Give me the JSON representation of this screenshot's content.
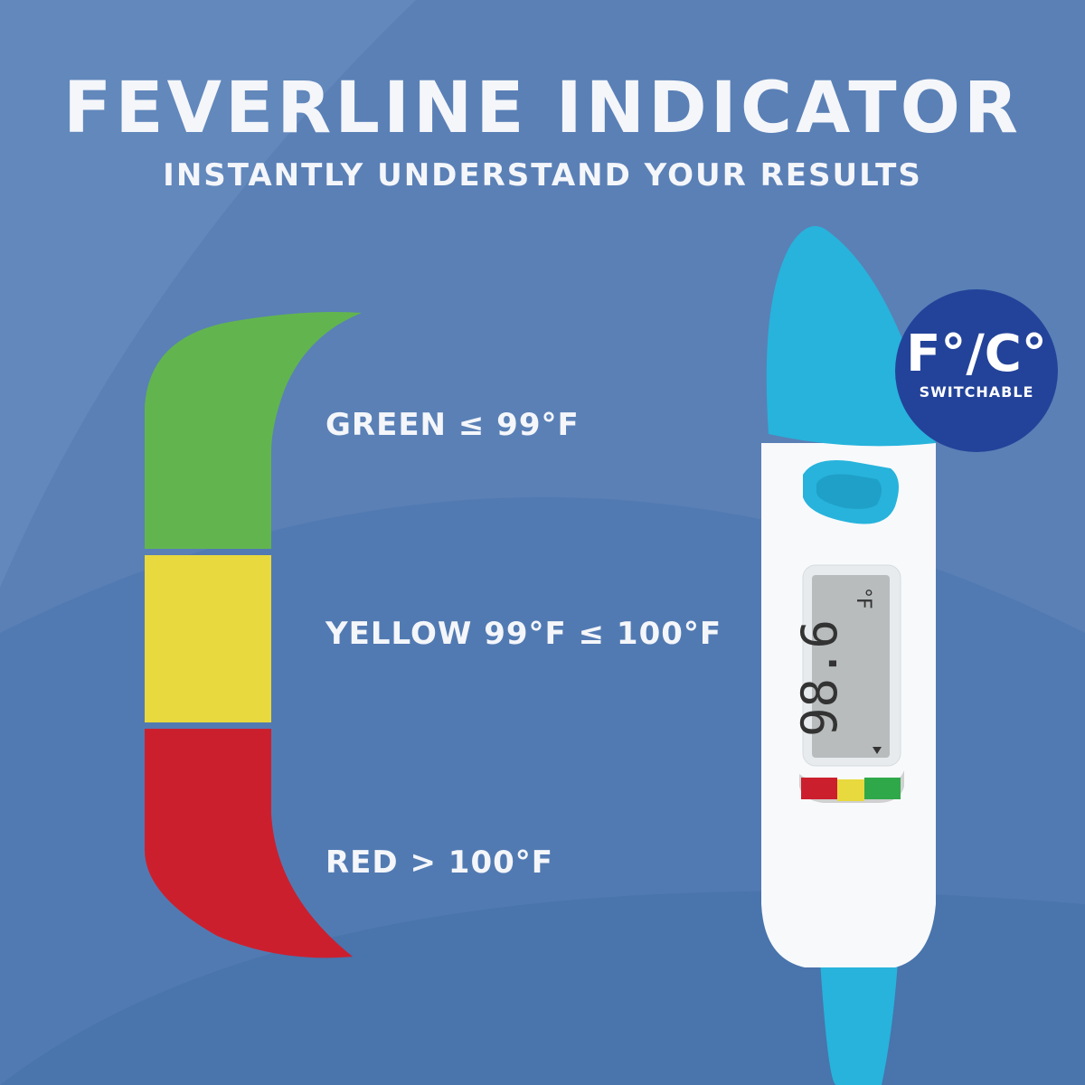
{
  "header": {
    "title": "FEVERLINE INDICATOR",
    "subtitle": "INSTANTLY UNDERSTAND YOUR RESULTS"
  },
  "legend": [
    {
      "label": "GREEN ≤ 99°F",
      "color": "#62b54e"
    },
    {
      "label": "YELLOW 99°F ≤ 100°F",
      "color": "#e8d93e"
    },
    {
      "label": "RED > 100°F",
      "color": "#cc1f2e"
    }
  ],
  "badge": {
    "title": "F°/C°",
    "subtitle": "SWITCHABLE",
    "color": "#23439a"
  },
  "thermometer": {
    "reading": "98.6",
    "unit": "°F",
    "accent": "#27b3dc"
  },
  "colors": {
    "background": "#5a80b6"
  }
}
